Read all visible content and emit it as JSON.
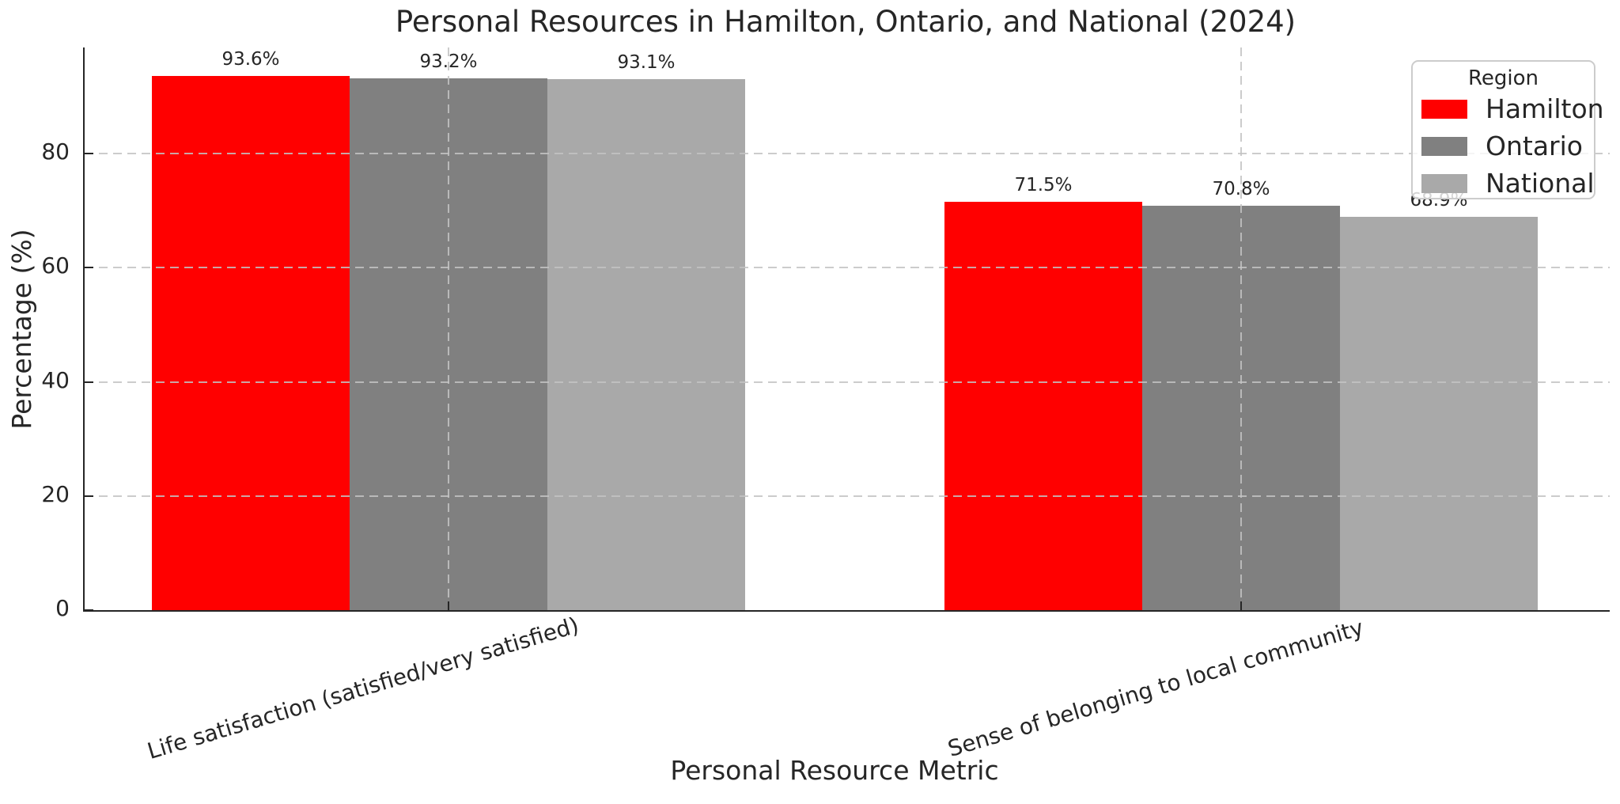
{
  "chart_data": {
    "type": "bar",
    "title": "Personal Resources in Hamilton, Ontario, and National (2024)",
    "xlabel": "Personal Resource Metric",
    "ylabel": "Percentage (%)",
    "categories": [
      "Life satisfaction (satisfied/very satisfied)",
      "Sense of belonging to local community"
    ],
    "series": [
      {
        "name": "Hamilton",
        "color": "#ff0000",
        "values": [
          93.6,
          71.5
        ],
        "labels": [
          "93.6%",
          "71.5%"
        ]
      },
      {
        "name": "Ontario",
        "color": "#808080",
        "values": [
          93.2,
          70.8
        ],
        "labels": [
          "93.2%",
          "70.8%"
        ]
      },
      {
        "name": "National",
        "color": "#a9a9a9",
        "values": [
          93.1,
          68.9
        ],
        "labels": [
          "93.1%",
          "68.9%"
        ]
      }
    ],
    "yticks": [
      0,
      20,
      40,
      60,
      80
    ],
    "ylim": [
      0,
      98.6
    ],
    "grid": {
      "style": "dashed",
      "axis": "both",
      "color": "#c3c3c3"
    },
    "legend": {
      "title": "Region",
      "position": "upper right"
    },
    "spine_color": "#262626",
    "text_color": "#262626"
  }
}
